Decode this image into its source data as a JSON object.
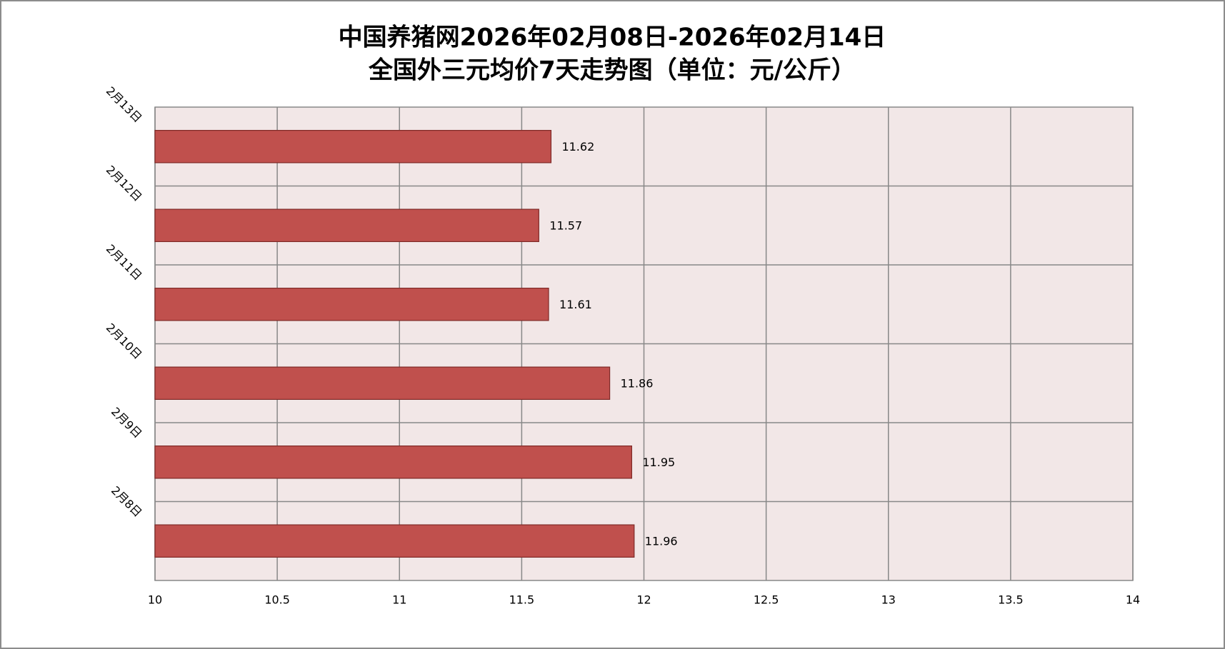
{
  "chart_data": {
    "type": "bar",
    "orientation": "horizontal",
    "title": "中国养猪网2026年02月08日-2026年02月14日",
    "subtitle": "全国外三元均价7天走势图（单位：元/公斤）",
    "categories": [
      "2月8日",
      "2月9日",
      "2月10日",
      "2月11日",
      "2月12日",
      "2月13日"
    ],
    "values": [
      11.96,
      11.95,
      11.86,
      11.61,
      11.57,
      11.62
    ],
    "color": "#c0504d",
    "xlim": [
      10,
      14
    ],
    "xticks": [
      10,
      10.5,
      11,
      11.5,
      12,
      12.5,
      13,
      13.5,
      14
    ],
    "grid": true
  }
}
